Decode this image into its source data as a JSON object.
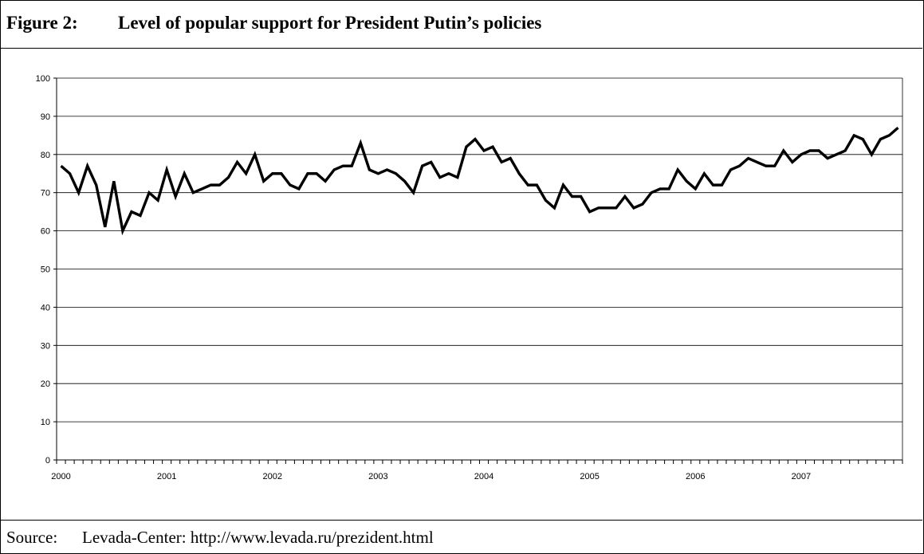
{
  "header": {
    "figure_label": "Figure 2:",
    "title": "Level of popular support for President Putin’s policies"
  },
  "source": {
    "label": "Source:",
    "text": "Levada-Center: http://www.levada.ru/prezident.html"
  },
  "chart_data": {
    "type": "line",
    "title": "Level of popular support for President Putin’s policies",
    "xlabel": "",
    "ylabel": "",
    "ylim": [
      0,
      100
    ],
    "y_ticks": [
      0,
      10,
      20,
      30,
      40,
      50,
      60,
      70,
      80,
      90,
      100
    ],
    "x_tick_labels": [
      "2000",
      "2001",
      "2002",
      "2003",
      "2004",
      "2005",
      "2006",
      "2007"
    ],
    "grid": "horizontal",
    "legend": "none",
    "line_color": "#000000",
    "series": [
      {
        "values": [
          77,
          75,
          70,
          77,
          72,
          61,
          73,
          60,
          65,
          64,
          70,
          68,
          76,
          69,
          75,
          70,
          71,
          72,
          72,
          74,
          78,
          75,
          80,
          73,
          75,
          75,
          72,
          71,
          75,
          75,
          73,
          76,
          77,
          77,
          83,
          76,
          75,
          76,
          75,
          73,
          70,
          77,
          78,
          74,
          75,
          74,
          82,
          84,
          81,
          82,
          78,
          79,
          75,
          72,
          72,
          68,
          66,
          72,
          69,
          69,
          65,
          66,
          66,
          66,
          69,
          66,
          67,
          70,
          71,
          71,
          76,
          73,
          71,
          75,
          72,
          72,
          76,
          77,
          79,
          78,
          77,
          77,
          81,
          78,
          80,
          81,
          81,
          79,
          80,
          81,
          85,
          84,
          80,
          84,
          85,
          87
        ]
      }
    ]
  }
}
